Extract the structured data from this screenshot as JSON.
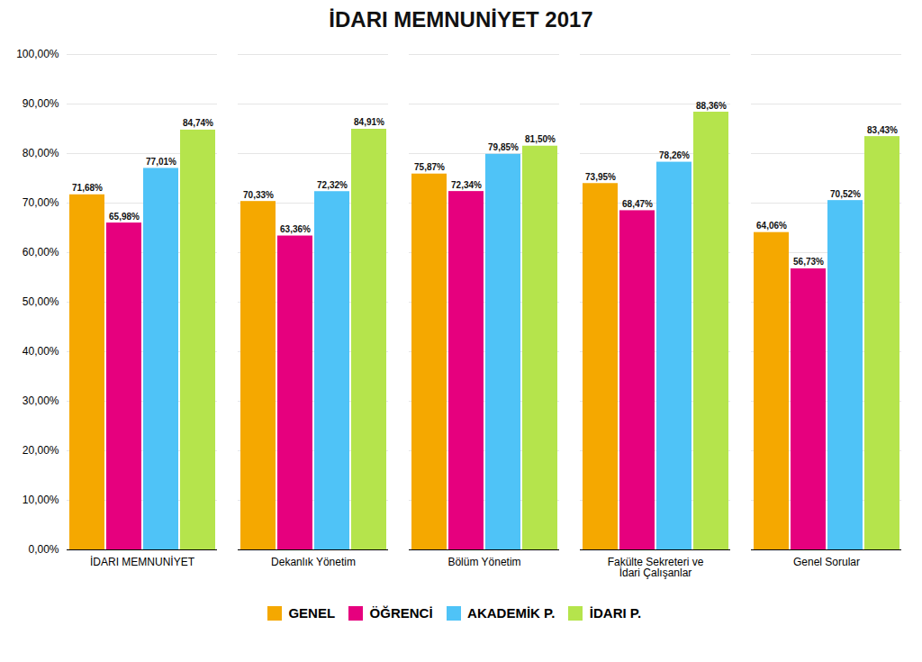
{
  "chart_data": {
    "type": "bar",
    "title": "İDARI MEMNUNİYET 2017",
    "categories": [
      "İDARI MEMNUNİYET",
      "Dekanlık Yönetim",
      "Bölüm Yönetim",
      "Fakülte Sekreteri ve\nİdari Çalışanlar",
      "Genel Sorular"
    ],
    "series": [
      {
        "name": "GENEL",
        "color": "#F5A800",
        "values": [
          71.68,
          70.33,
          75.87,
          73.95,
          64.06
        ],
        "value_labels": [
          "71,68%",
          "70,33%",
          "75,87%",
          "73,95%",
          "64,06%"
        ]
      },
      {
        "name": "ÖĞRENCİ",
        "color": "#E6007E",
        "values": [
          65.98,
          63.36,
          72.34,
          68.47,
          56.73
        ],
        "value_labels": [
          "65,98%",
          "63,36%",
          "72,34%",
          "68,47%",
          "56,73%"
        ]
      },
      {
        "name": "AKADEMİK P.",
        "color": "#4FC3F7",
        "values": [
          77.01,
          72.32,
          79.85,
          78.26,
          70.52
        ],
        "value_labels": [
          "77,01%",
          "72,32%",
          "79,85%",
          "78,26%",
          "70,52%"
        ]
      },
      {
        "name": "İDARI P.",
        "color": "#B5E44C",
        "values": [
          84.74,
          84.91,
          81.5,
          88.36,
          83.43
        ],
        "value_labels": [
          "84,74%",
          "84,91%",
          "81,50%",
          "88,36%",
          "83,43%"
        ]
      }
    ],
    "ylim": [
      0,
      100
    ],
    "yticks": [
      {
        "value": 0,
        "label": "0,00%"
      },
      {
        "value": 10,
        "label": "10,00%"
      },
      {
        "value": 20,
        "label": "20,00%"
      },
      {
        "value": 30,
        "label": "30,00%"
      },
      {
        "value": 40,
        "label": "40,00%"
      },
      {
        "value": 50,
        "label": "50,00%"
      },
      {
        "value": 60,
        "label": "60,00%"
      },
      {
        "value": 70,
        "label": "70,00%"
      },
      {
        "value": 80,
        "label": "80,00%"
      },
      {
        "value": 90,
        "label": "90,00%"
      },
      {
        "value": 100,
        "label": "100,00%"
      }
    ],
    "grid": true,
    "legend": "bottom",
    "data_labels": true
  }
}
